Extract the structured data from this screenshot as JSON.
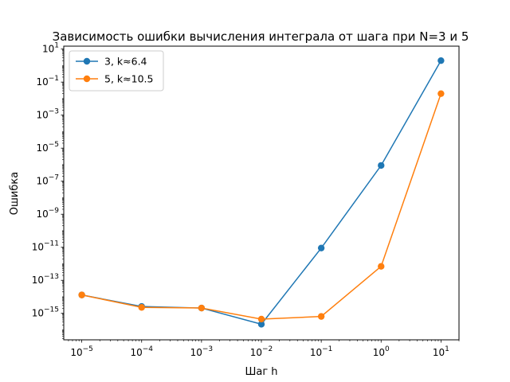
{
  "chart_data": {
    "type": "line",
    "title": "Зависимость ошибки вычисления интеграла от шага при N=3 и 5",
    "xlabel": "Шаг h",
    "ylabel": "Ошибка",
    "x_scale": "log",
    "y_scale": "log",
    "x": [
      1e-05,
      0.0001,
      0.001,
      0.01,
      0.1,
      1,
      10
    ],
    "xlim": [
      5e-06,
      20
    ],
    "ylim": [
      2.5e-17,
      15
    ],
    "x_ticks": [
      {
        "mant": "10",
        "exp": "−5",
        "value": 1e-05
      },
      {
        "mant": "10",
        "exp": "−4",
        "value": 0.0001
      },
      {
        "mant": "10",
        "exp": "−3",
        "value": 0.001
      },
      {
        "mant": "10",
        "exp": "−2",
        "value": 0.01
      },
      {
        "mant": "10",
        "exp": "−1",
        "value": 0.1
      },
      {
        "mant": "10",
        "exp": "0",
        "value": 1
      },
      {
        "mant": "10",
        "exp": "1",
        "value": 10
      }
    ],
    "y_ticks": [
      {
        "mant": "10",
        "exp": "1",
        "value": 10
      },
      {
        "mant": "10",
        "exp": "−1",
        "value": 0.1
      },
      {
        "mant": "10",
        "exp": "−3",
        "value": 0.001
      },
      {
        "mant": "10",
        "exp": "−5",
        "value": 1e-05
      },
      {
        "mant": "10",
        "exp": "−7",
        "value": 1e-07
      },
      {
        "mant": "10",
        "exp": "−9",
        "value": 1e-09
      },
      {
        "mant": "10",
        "exp": "−11",
        "value": 1e-11
      },
      {
        "mant": "10",
        "exp": "−13",
        "value": 1e-13
      },
      {
        "mant": "10",
        "exp": "−15",
        "value": 1e-15
      }
    ],
    "series": [
      {
        "name": "3, k≈6.4",
        "color": "#1f77b4",
        "values": [
          1.3e-14,
          2.6e-15,
          2.1e-15,
          2.2e-16,
          9e-12,
          9e-07,
          2
        ]
      },
      {
        "name": "5, k≈10.5",
        "color": "#ff7f0e",
        "values": [
          1.3e-14,
          2.3e-15,
          2.1e-15,
          4.5e-16,
          6.5e-16,
          7e-13,
          0.02
        ]
      }
    ],
    "legend_position": "top-left",
    "grid": false
  }
}
